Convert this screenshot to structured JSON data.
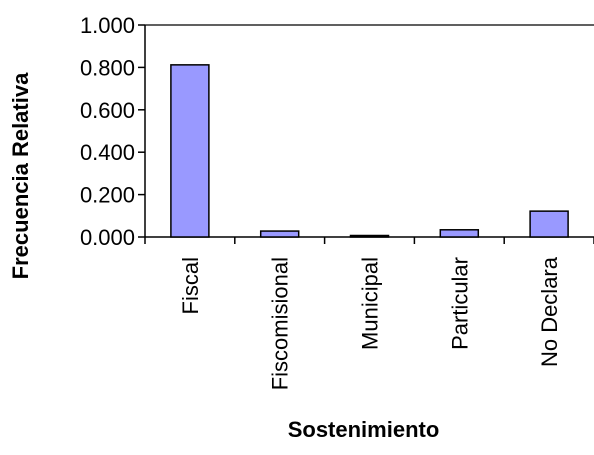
{
  "chart_data": {
    "type": "bar",
    "title": "",
    "xlabel": "Sostenimiento",
    "ylabel": "Frecuencia Relativa",
    "categories": [
      "Fiscal",
      "Fiscomisional",
      "Municipal",
      "Particular",
      "No Declara"
    ],
    "values": [
      0.812,
      0.028,
      0.004,
      0.034,
      0.122
    ],
    "ylim": [
      0,
      1.0
    ],
    "yticks": [
      0.0,
      0.2,
      0.4,
      0.6,
      0.8,
      1.0
    ],
    "ytick_labels": [
      "0.000",
      "0.200",
      "0.400",
      "0.600",
      "0.800",
      "1.000"
    ],
    "grid": false,
    "legend": "none",
    "bar_color": "#9999ff",
    "bar_stroke": "#000000"
  }
}
